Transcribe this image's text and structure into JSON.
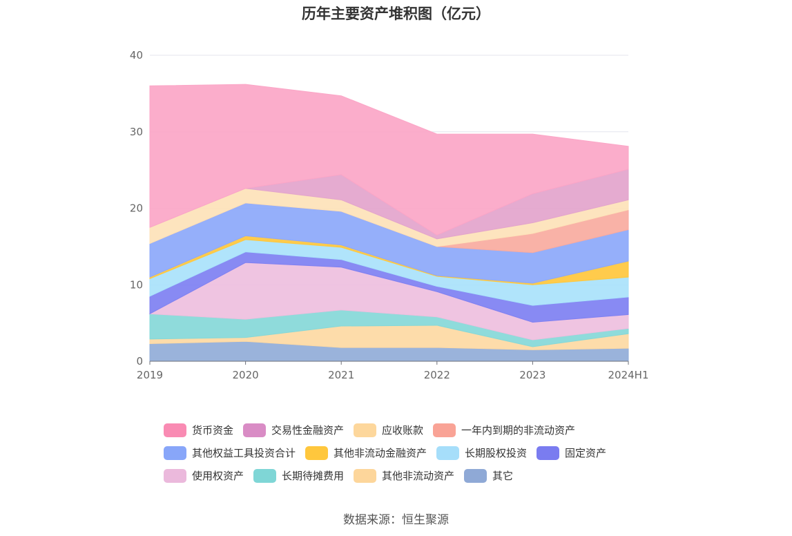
{
  "chart_data": {
    "type": "area",
    "stacked": true,
    "title": "历年主要资产堆积图（亿元）",
    "source": "数据来源：恒生聚源",
    "x": [
      "2019",
      "2020",
      "2021",
      "2022",
      "2023",
      "2024H1"
    ],
    "ylim": [
      0,
      40
    ],
    "yticks": [
      0,
      10,
      20,
      30,
      40
    ],
    "grid": true,
    "legend_position": "bottom",
    "series": [
      {
        "name": "其它",
        "color": "#91acd8",
        "values": [
          2.3,
          2.6,
          1.8,
          1.8,
          1.5,
          1.7
        ]
      },
      {
        "name": "其他非流动资产",
        "color": "#fdd9a3",
        "values": [
          0.6,
          0.5,
          2.8,
          2.9,
          0.4,
          1.9
        ]
      },
      {
        "name": "长期待摊费用",
        "color": "#86d8d8",
        "values": [
          3.3,
          2.4,
          2.1,
          1.1,
          0.9,
          0.7
        ]
      },
      {
        "name": "使用权资产",
        "color": "#eebfde",
        "values": [
          0.0,
          7.4,
          5.6,
          3.3,
          2.3,
          1.8
        ]
      },
      {
        "name": "固定资产",
        "color": "#7e80f2",
        "values": [
          2.3,
          1.4,
          1.0,
          0.7,
          2.2,
          2.3
        ]
      },
      {
        "name": "长期股权投资",
        "color": "#a9e2fb",
        "values": [
          2.3,
          1.6,
          1.6,
          1.3,
          2.7,
          2.6
        ]
      },
      {
        "name": "其他非流动金融资产",
        "color": "#ffc73d",
        "values": [
          0.2,
          0.5,
          0.3,
          0.1,
          0.2,
          2.1
        ]
      },
      {
        "name": "其他权益工具投资合计",
        "color": "#8ca8fa",
        "values": [
          4.4,
          4.3,
          4.4,
          3.8,
          4.0,
          4.1
        ]
      },
      {
        "name": "一年内到期的非流动资产",
        "color": "#f9aba0",
        "values": [
          0.0,
          0.0,
          0.0,
          0.0,
          2.5,
          2.6
        ]
      },
      {
        "name": "应收账款",
        "color": "#fde2b8",
        "values": [
          2.1,
          1.9,
          1.5,
          1.0,
          1.4,
          1.3
        ]
      },
      {
        "name": "交易性金融资产",
        "color": "#e3a4cc",
        "values": [
          0.0,
          0.0,
          3.3,
          0.5,
          3.8,
          4.0
        ]
      },
      {
        "name": "货币资金",
        "color": "#fba6c7",
        "values": [
          18.5,
          13.6,
          10.3,
          13.2,
          7.8,
          3.0
        ]
      }
    ],
    "legend_order": [
      [
        "货币资金",
        "交易性金融资产",
        "应收账款",
        "一年内到期的非流动资产"
      ],
      [
        "其他权益工具投资合计",
        "其他非流动金融资产",
        "长期股权投资",
        "固定资产"
      ],
      [
        "使用权资产",
        "长期待摊费用",
        "其他非流动资产",
        "其它"
      ]
    ],
    "legend_colors": {
      "货币资金": "#f98bb3",
      "交易性金融资产": "#d98cc5",
      "应收账款": "#fdd79c",
      "一年内到期的非流动资产": "#f9a396",
      "其他权益工具投资合计": "#88a6f9",
      "其他非流动金融资产": "#ffc73d",
      "长期股权投资": "#a6defa",
      "固定资产": "#7a7cf0",
      "使用权资产": "#ebb9dc",
      "长期待摊费用": "#7fd6d6",
      "其他非流动资产": "#fdd69b",
      "其它": "#8fa9d6"
    }
  }
}
